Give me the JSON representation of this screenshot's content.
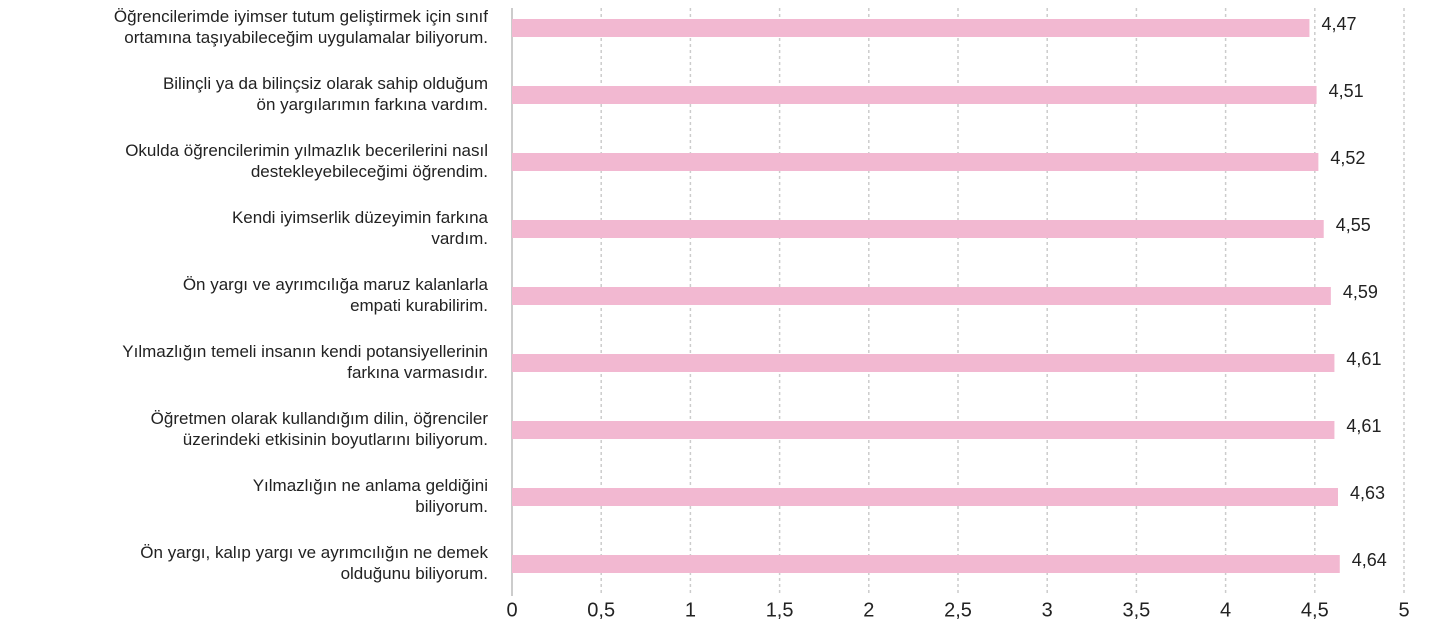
{
  "chart_data": {
    "type": "bar",
    "orientation": "horizontal",
    "categories": [
      "Öğrencilerimde iyimser tutum geliştirmek için sınıf\nortamına taşıyabileceğim uygulamalar biliyorum.",
      "Bilinçli ya da bilinçsiz olarak sahip olduğum\nön yargılarımın farkına vardım.",
      "Okulda öğrencilerimin yılmazlık becerilerini nasıl\ndestekleyebileceğimi öğrendim.",
      "Kendi iyimserlik düzeyimin farkına\nvardım.",
      "Ön yargı ve ayrımcılığa maruz kalanlarla\nempati kurabilirim.",
      "Yılmazlığın temeli insanın kendi potansiyellerinin\nfarkına varmasıdır.",
      "Öğretmen olarak kullandığım dilin, öğrenciler\nüzerindeki etkisinin boyutlarını biliyorum.",
      "Yılmazlığın ne anlama geldiğini\nbiliyorum.",
      "Ön yargı, kalıp yargı ve ayrımcılığın ne demek\nolduğunu biliyorum."
    ],
    "values": [
      4.47,
      4.51,
      4.52,
      4.55,
      4.59,
      4.61,
      4.61,
      4.63,
      4.64
    ],
    "value_labels": [
      "4,47",
      "4,51",
      "4,52",
      "4,55",
      "4,59",
      "4,61",
      "4,61",
      "4,63",
      "4,64"
    ],
    "color": "#f2b8d1",
    "xlim": [
      0,
      5
    ],
    "xticks": [
      0,
      {
        "value": 0.5,
        "label": "0,5"
      },
      1,
      {
        "value": 1.5,
        "label": "1,5"
      },
      2,
      {
        "value": 2.5,
        "label": "2,5"
      },
      3,
      {
        "value": 3.5,
        "label": "3,5"
      },
      4,
      {
        "value": 4.5,
        "label": "4,5"
      },
      5
    ],
    "grid": true
  }
}
